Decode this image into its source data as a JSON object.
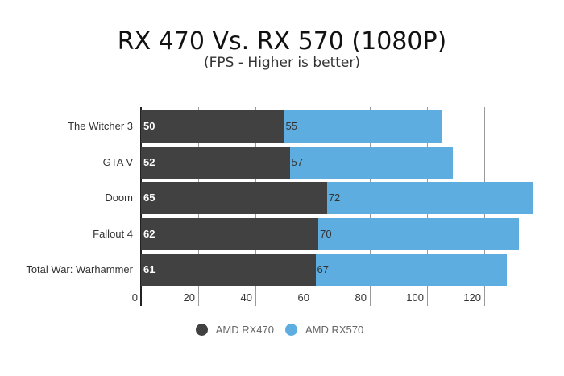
{
  "chart_data": {
    "type": "bar",
    "orientation": "horizontal",
    "stacked": true,
    "title": "RX 470 Vs. RX 570 (1080P)",
    "subtitle": "(FPS - Higher is better)",
    "categories": [
      "The Witcher 3",
      "GTA V",
      "Doom",
      "Fallout 4",
      "Total War: Warhammer"
    ],
    "series": [
      {
        "name": "AMD RX470",
        "color": "#414141",
        "values": [
          50,
          52,
          65,
          62,
          61
        ]
      },
      {
        "name": "AMD RX570",
        "color": "#5dade0",
        "values": [
          55,
          57,
          72,
          70,
          67
        ]
      }
    ],
    "xticks": [
      0,
      20,
      40,
      60,
      80,
      100,
      120
    ],
    "xlim": [
      0,
      140
    ],
    "grid": true,
    "legend_position": "bottom"
  }
}
